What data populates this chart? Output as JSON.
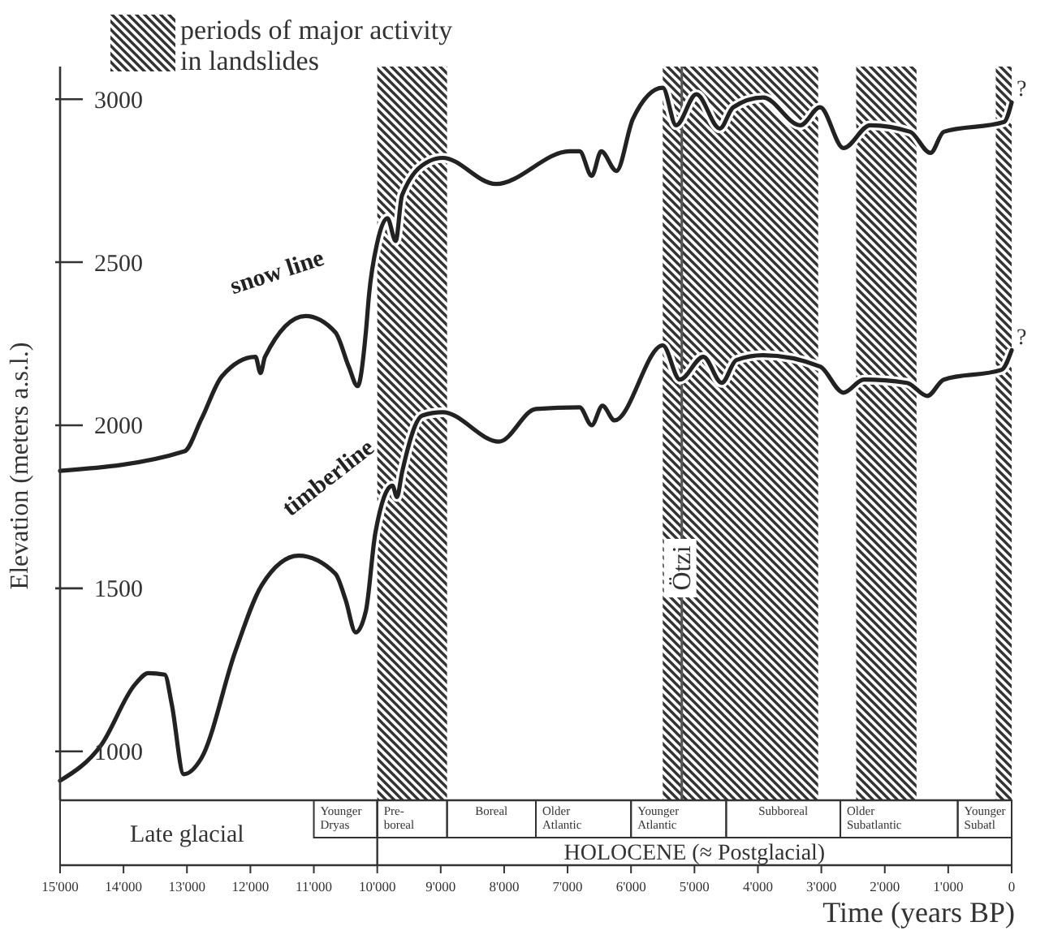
{
  "chart_data": {
    "type": "line",
    "ylabel": "Elevation (meters a.s.l.)",
    "xlabel": "Time (years BP)",
    "legend_title": "periods of major activity in landslides",
    "legend": "top left",
    "xlim": [
      15000,
      0
    ],
    "ylim": [
      850,
      3100
    ],
    "xticks": [
      {
        "value": 15000,
        "label": "15'000"
      },
      {
        "value": 14000,
        "label": "14'000"
      },
      {
        "value": 13000,
        "label": "13'000"
      },
      {
        "value": 12000,
        "label": "12'000"
      },
      {
        "value": 11000,
        "label": "11'000"
      },
      {
        "value": 10000,
        "label": "10'000"
      },
      {
        "value": 9000,
        "label": "9'000"
      },
      {
        "value": 8000,
        "label": "8'000"
      },
      {
        "value": 7000,
        "label": "7'000"
      },
      {
        "value": 6000,
        "label": "6'000"
      },
      {
        "value": 5000,
        "label": "5'000"
      },
      {
        "value": 4000,
        "label": "4'000"
      },
      {
        "value": 3000,
        "label": "3'000"
      },
      {
        "value": 2000,
        "label": "2'000"
      },
      {
        "value": 1000,
        "label": "1'000"
      },
      0
    ],
    "yticks": [
      1000,
      1500,
      2000,
      2500,
      3000
    ],
    "series": [
      {
        "name": "snow line",
        "color": "#222222",
        "x": [
          15000,
          13040,
          12770,
          12450,
          11920,
          11840,
          11770,
          11130,
          10660,
          10450,
          10310,
          10180,
          10130,
          10000,
          9840,
          9710,
          9610,
          9180,
          8970,
          8130,
          6970,
          6810,
          6620,
          6470,
          6230,
          5970,
          5500,
          5290,
          4970,
          4600,
          4390,
          3920,
          3330,
          3020,
          2650,
          2230,
          1600,
          1280,
          1070,
          120,
          0
        ],
        "values": [
          1860,
          1920,
          2020,
          2150,
          2210,
          2160,
          2210,
          2335,
          2285,
          2180,
          2120,
          2285,
          2400,
          2560,
          2635,
          2565,
          2705,
          2810,
          2820,
          2740,
          2840,
          2840,
          2765,
          2840,
          2780,
          2940,
          3035,
          2920,
          3015,
          2910,
          2975,
          3005,
          2920,
          2975,
          2850,
          2920,
          2900,
          2835,
          2900,
          2930,
          2990
        ]
      },
      {
        "name": "timberline",
        "color": "#222222",
        "x": [
          15000,
          14350,
          13820,
          13610,
          13350,
          13240,
          13050,
          12770,
          12240,
          11820,
          11240,
          10660,
          10500,
          10340,
          10180,
          10030,
          9760,
          9690,
          9610,
          9290,
          8970,
          8080,
          7500,
          6810,
          6620,
          6450,
          6260,
          5500,
          5230,
          4860,
          4570,
          4340,
          3920,
          3020,
          2650,
          2330,
          1650,
          1330,
          1070,
          160,
          0
        ],
        "values": [
          910,
          1020,
          1205,
          1240,
          1235,
          1145,
          930,
          980,
          1305,
          1510,
          1600,
          1545,
          1465,
          1365,
          1430,
          1670,
          1815,
          1780,
          1855,
          2030,
          2040,
          1950,
          2050,
          2055,
          2000,
          2060,
          2015,
          2245,
          2140,
          2210,
          2130,
          2200,
          2215,
          2180,
          2100,
          2140,
          2130,
          2090,
          2140,
          2170,
          2230
        ]
      }
    ],
    "bands": [
      {
        "axis": "x",
        "from": 10000,
        "to": 8900,
        "color": "#333333"
      },
      {
        "axis": "x",
        "from": 5500,
        "to": 3050,
        "color": "#333333"
      },
      {
        "axis": "x",
        "from": 2450,
        "to": 1500,
        "color": "#333333"
      },
      {
        "axis": "x",
        "from": 250,
        "to": 0,
        "color": "#333333"
      }
    ],
    "ref_lines": [
      {
        "axis": "x",
        "value": 5200,
        "label": "Ötzi",
        "color": "#555555"
      }
    ],
    "annotations": [
      {
        "text": "?",
        "x": 0,
        "y": 2990
      },
      {
        "text": "?",
        "x": 0,
        "y": 2230
      },
      "Late glacial",
      "Younger Dryas",
      "Pre-boreal",
      "Boreal",
      "Older Atlantic",
      "Younger Atlantic",
      "Subboreal",
      "Older Subatlantic",
      "Younger Subatl",
      "HOLOCENE (≈ Postglacial)"
    ]
  }
}
